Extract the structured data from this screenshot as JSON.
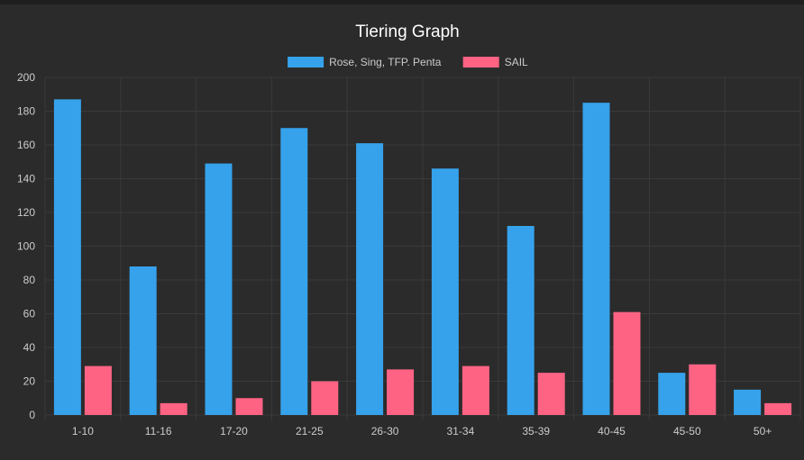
{
  "chart_data": {
    "type": "bar",
    "title": "Tiering Graph",
    "categories": [
      "1-10",
      "11-16",
      "17-20",
      "21-25",
      "26-30",
      "31-34",
      "35-39",
      "40-45",
      "45-50",
      "50+"
    ],
    "series": [
      {
        "name": "Rose, Sing, TFP. Penta",
        "color": "#36a2eb",
        "values": [
          187,
          88,
          149,
          170,
          161,
          146,
          112,
          185,
          25,
          15
        ]
      },
      {
        "name": "SAIL",
        "color": "#ff6384",
        "values": [
          29,
          7,
          10,
          20,
          27,
          29,
          25,
          61,
          30,
          7
        ]
      }
    ],
    "ylim": [
      0,
      200
    ],
    "yticks": [
      0,
      20,
      40,
      60,
      80,
      100,
      120,
      140,
      160,
      180,
      200
    ],
    "grid": true,
    "legend_position": "top"
  },
  "colors": {
    "background": "#2b2b2b",
    "grid": "#3a3a3a",
    "text": "#cccccc",
    "title": "#ffffff"
  }
}
